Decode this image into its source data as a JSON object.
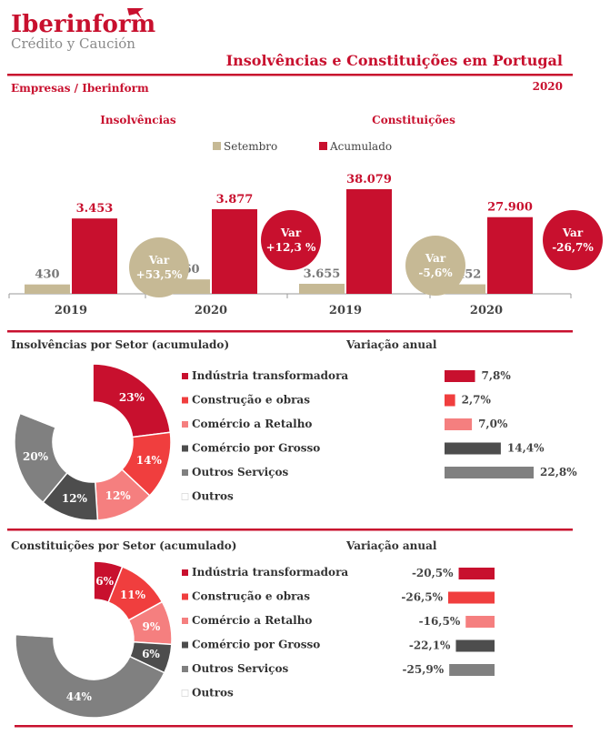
{
  "brand": {
    "name": "Iberinform",
    "tagline": "Crédito y Caución"
  },
  "header": {
    "title": "Insolvências e Constituições em  Portugal",
    "source": "Empresas / Iberinform",
    "year": "2020"
  },
  "colors": {
    "brand_red": "#c8102e",
    "beige": "#c6b995",
    "dark_gray": "#4d4d4d",
    "mid_gray": "#808080"
  },
  "legend": {
    "setembro": "Setembro",
    "acumulado": "Acumulado"
  },
  "chart_data": [
    {
      "type": "bar",
      "title": "Insolvências",
      "categories": [
        "2019",
        "2020"
      ],
      "series": [
        {
          "name": "Setembro",
          "values": [
            430,
            660
          ],
          "labels": [
            "430",
            "660"
          ]
        },
        {
          "name": "Acumulado",
          "values": [
            3453,
            3877
          ],
          "labels": [
            "3.453",
            "3.877"
          ]
        }
      ],
      "annotations": [
        {
          "line1": "Var",
          "line2": "+53,5%"
        },
        {
          "line1": "Var",
          "line2": "+12,3 %"
        }
      ]
    },
    {
      "type": "bar",
      "title": "Constituições",
      "categories": [
        "2019",
        "2020"
      ],
      "series": [
        {
          "name": "Setembro",
          "values": [
            3655,
            3452
          ],
          "labels": [
            "3.655",
            "3.452"
          ]
        },
        {
          "name": "Acumulado",
          "values": [
            38079,
            27900
          ],
          "labels": [
            "38.079",
            "27.900"
          ]
        }
      ],
      "annotations": [
        {
          "line1": "Var",
          "line2": "-5,6%"
        },
        {
          "line1": "Var",
          "line2": "-26,7%"
        }
      ]
    },
    {
      "type": "pie",
      "title": "Insolvências por Setor (acumulado)",
      "variation_title": "Variação anual",
      "slices": [
        {
          "name": "Indústria transformadora",
          "value": 23,
          "label": "23%",
          "color": "#c8102e",
          "variation": 7.8,
          "variation_label": "7,8%"
        },
        {
          "name": "Construção e obras",
          "value": 14,
          "label": "14%",
          "color": "#f03e3e",
          "variation": 2.7,
          "variation_label": "2,7%"
        },
        {
          "name": "Comércio a Retalho",
          "value": 12,
          "label": "12%",
          "color": "#f57f7f",
          "variation": 7.0,
          "variation_label": "7,0%"
        },
        {
          "name": "Comércio por Grosso",
          "value": 12,
          "label": "12%",
          "color": "#4d4d4d",
          "variation": 14.4,
          "variation_label": "14,4%"
        },
        {
          "name": "Outros Serviços",
          "value": 20,
          "label": "20%",
          "color": "#808080",
          "variation": 22.8,
          "variation_label": "22,8%"
        },
        {
          "name": "Outros",
          "value": 19,
          "label": "",
          "color": "#ffffff",
          "variation": null,
          "variation_label": ""
        }
      ]
    },
    {
      "type": "pie",
      "title": "Constituições por Setor (acumulado)",
      "variation_title": "Variação anual",
      "slices": [
        {
          "name": "Indústria transformadora",
          "value": 6,
          "label": "6%",
          "color": "#c8102e",
          "variation": -20.5,
          "variation_label": "-20,5%"
        },
        {
          "name": "Construção e obras",
          "value": 11,
          "label": "11%",
          "color": "#f03e3e",
          "variation": -26.5,
          "variation_label": "-26,5%"
        },
        {
          "name": "Comércio a Retalho",
          "value": 9,
          "label": "9%",
          "color": "#f57f7f",
          "variation": -16.5,
          "variation_label": "-16,5%"
        },
        {
          "name": "Comércio por Grosso",
          "value": 6,
          "label": "6%",
          "color": "#4d4d4d",
          "variation": -22.1,
          "variation_label": "-22,1%"
        },
        {
          "name": "Outros Serviços",
          "value": 44,
          "label": "44%",
          "color": "#808080",
          "variation": -25.9,
          "variation_label": "-25,9%"
        },
        {
          "name": "Outros",
          "value": 24,
          "label": "",
          "color": "#ffffff",
          "variation": null,
          "variation_label": ""
        }
      ]
    }
  ]
}
